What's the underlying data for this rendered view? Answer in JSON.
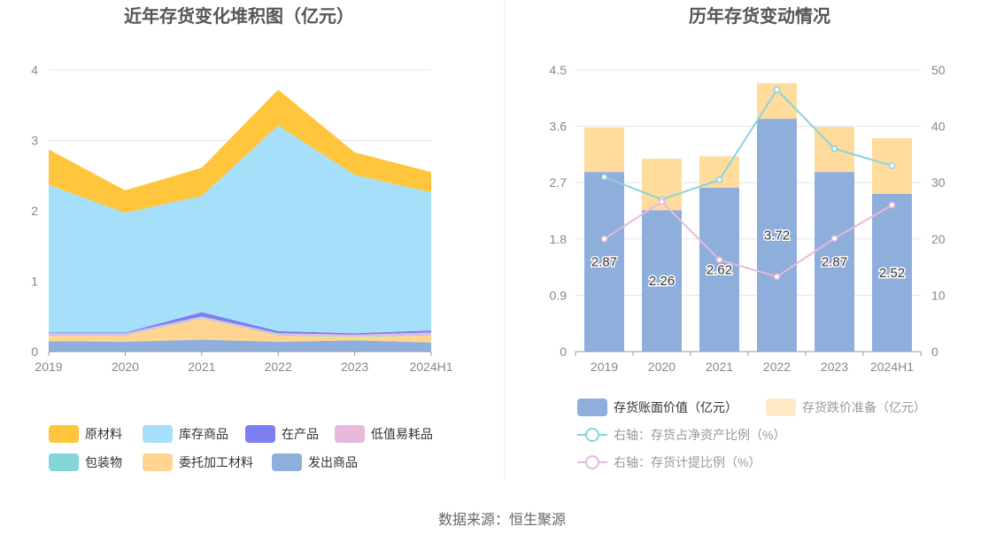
{
  "source_text": "数据来源：恒生聚源",
  "colors": {
    "grid": "#e3e6ee",
    "axis": "#999999",
    "divider": "#eeeeee"
  },
  "chart_data": [
    {
      "type": "area",
      "stacked": true,
      "title": "近年存货变化堆积图（亿元）",
      "categories": [
        "2019",
        "2020",
        "2021",
        "2022",
        "2023",
        "2024H1"
      ],
      "ylim": [
        0,
        4
      ],
      "yticks": [
        "0",
        "1",
        "2",
        "3",
        "4"
      ],
      "grid": true,
      "legend_position": "bottom",
      "stack_order": [
        "发出商品",
        "委托加工材料",
        "包装物",
        "低值易耗品",
        "在产品",
        "库存商品",
        "原材料"
      ],
      "series": [
        {
          "name": "原材料",
          "color": "#ffc53d",
          "values": [
            0.5,
            0.32,
            0.4,
            0.51,
            0.32,
            0.29
          ]
        },
        {
          "name": "库存商品",
          "color": "#a6dffa",
          "values": [
            2.1,
            1.7,
            1.65,
            2.92,
            2.25,
            1.96
          ]
        },
        {
          "name": "在产品",
          "color": "#7b7ff0",
          "values": [
            0.01,
            0.01,
            0.06,
            0.03,
            0.02,
            0.03
          ]
        },
        {
          "name": "低值易耗品",
          "color": "#e8b9dc",
          "values": [
            0.02,
            0.02,
            0.02,
            0.02,
            0.02,
            0.03
          ]
        },
        {
          "name": "包装物",
          "color": "#84d5d8",
          "values": [
            0.01,
            0.01,
            0.01,
            0.01,
            0.01,
            0.01
          ]
        },
        {
          "name": "委托加工材料",
          "color": "#ffd591",
          "values": [
            0.08,
            0.09,
            0.3,
            0.09,
            0.05,
            0.1
          ]
        },
        {
          "name": "发出商品",
          "color": "#8eaedb",
          "values": [
            0.15,
            0.14,
            0.17,
            0.14,
            0.16,
            0.13
          ]
        }
      ],
      "legend": [
        [
          "原材料",
          "库存商品",
          "在产品",
          "低值易耗品"
        ],
        [
          "包装物",
          "委托加工材料",
          "发出商品"
        ]
      ]
    },
    {
      "type": "bar+line",
      "title": "历年存货变动情况",
      "categories": [
        "2019",
        "2020",
        "2021",
        "2022",
        "2023",
        "2024H1"
      ],
      "ylim_left": [
        0,
        4.5
      ],
      "yticks_left": [
        "0",
        "0.9",
        "1.8",
        "2.7",
        "3.6",
        "4.5"
      ],
      "ylim_right": [
        0,
        50
      ],
      "yticks_right": [
        "0",
        "10",
        "20",
        "30",
        "40",
        "50"
      ],
      "grid": true,
      "legend_position": "bottom",
      "bar_series": [
        {
          "name": "存货账面价值（亿元）",
          "color": "#8eaedb",
          "values": [
            2.87,
            2.26,
            2.62,
            3.72,
            2.87,
            2.52
          ],
          "labels": [
            "2.87",
            "2.26",
            "2.62",
            "3.72",
            "2.87",
            "2.52"
          ]
        },
        {
          "name": "存货跌价准备（亿元）",
          "color": "#ffdc9e",
          "legend_color": "#ffe9c7",
          "values": [
            0.71,
            0.82,
            0.5,
            0.57,
            0.72,
            0.89
          ]
        }
      ],
      "line_series": [
        {
          "name": "右轴：存货占净资产比例（%）",
          "color": "#8ad3dc",
          "axis": "right",
          "values": [
            31.0,
            27.0,
            30.5,
            46.5,
            36.0,
            33.0
          ]
        },
        {
          "name": "右轴：存货计提比例（%）",
          "color": "#e7b9da",
          "axis": "right",
          "values": [
            20.0,
            26.6,
            16.3,
            13.3,
            20.1,
            26.0
          ]
        }
      ]
    }
  ]
}
